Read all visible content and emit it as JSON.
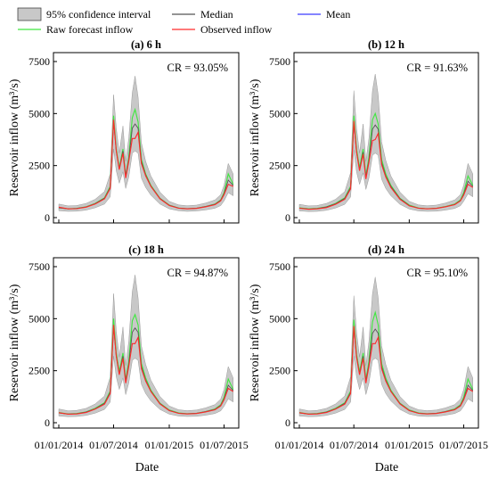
{
  "legend": {
    "items": [
      {
        "label": "95% confidence interval",
        "kind": "band",
        "color": "#c8c8c8"
      },
      {
        "label": "Median",
        "kind": "line",
        "color": "#555555"
      },
      {
        "label": "Mean",
        "kind": "line",
        "color": "#3b3bff"
      },
      {
        "label": "Raw forecast inflow",
        "kind": "line",
        "color": "#3ee83e"
      },
      {
        "label": "Observed inflow",
        "kind": "line",
        "color": "#ff2a2a"
      }
    ]
  },
  "shared_ylabel": "Reservoir inflow (m³/s)",
  "shared_xlabel": "Date",
  "chart_data": [
    {
      "type": "area",
      "title": "(a) 6 h",
      "annotation": "CR = 93.05%",
      "xlabel": "",
      "ylabel": "Reservoir inflow (m³/s)",
      "x_ticks": [],
      "ylim": [
        0,
        7500
      ],
      "y_ticks": [
        "0",
        "2500",
        "5000",
        "7500"
      ],
      "x": [
        "2014-01-01",
        "2014-02-01",
        "2014-03-01",
        "2014-04-01",
        "2014-05-01",
        "2014-06-01",
        "2014-06-20",
        "2014-07-01",
        "2014-07-10",
        "2014-07-20",
        "2014-08-01",
        "2014-08-10",
        "2014-08-20",
        "2014-09-01",
        "2014-09-10",
        "2014-09-20",
        "2014-10-01",
        "2014-10-15",
        "2014-11-01",
        "2014-12-01",
        "2015-01-01",
        "2015-02-01",
        "2015-03-01",
        "2015-04-01",
        "2015-05-01",
        "2015-06-01",
        "2015-06-20",
        "2015-07-01",
        "2015-07-15",
        "2015-07-31"
      ],
      "series": [
        {
          "name": "Observed inflow",
          "values": [
            500,
            420,
            430,
            500,
            650,
            900,
            1400,
            4700,
            3200,
            2300,
            3100,
            1900,
            2700,
            3800,
            3800,
            4100,
            2600,
            2000,
            1500,
            900,
            580,
            450,
            420,
            440,
            520,
            620,
            800,
            1100,
            1600,
            1500
          ]
        },
        {
          "name": "Raw forecast inflow",
          "values": [
            480,
            420,
            440,
            520,
            680,
            950,
            1500,
            4900,
            3300,
            2400,
            3300,
            2000,
            2900,
            4800,
            5200,
            4600,
            2800,
            2100,
            1550,
            930,
            600,
            460,
            430,
            450,
            530,
            650,
            850,
            1200,
            2100,
            1600
          ]
        },
        {
          "name": "Median",
          "values": [
            470,
            420,
            440,
            510,
            670,
            930,
            1450,
            4600,
            3200,
            2350,
            3200,
            2000,
            2800,
            4300,
            4500,
            4300,
            2700,
            2050,
            1520,
            920,
            590,
            460,
            430,
            450,
            530,
            640,
            830,
            1150,
            1800,
            1550
          ]
        },
        {
          "name": "95% confidence interval upper",
          "values": [
            650,
            560,
            580,
            680,
            880,
            1250,
            2100,
            5900,
            4300,
            3100,
            4400,
            2700,
            3800,
            6000,
            6800,
            5800,
            3600,
            2700,
            2000,
            1230,
            780,
            610,
            570,
            600,
            700,
            850,
            1100,
            1550,
            2600,
            2100
          ]
        },
        {
          "name": "95% confidence interval lower",
          "values": [
            330,
            300,
            310,
            360,
            470,
            650,
            1000,
            3300,
            2250,
            1650,
            2200,
            1400,
            1950,
            3100,
            3200,
            3100,
            1900,
            1450,
            1080,
            650,
            420,
            330,
            300,
            320,
            370,
            450,
            580,
            800,
            1200,
            1050
          ]
        }
      ]
    },
    {
      "type": "area",
      "title": "(b) 12 h",
      "annotation": "CR = 91.63%",
      "xlabel": "",
      "ylabel": "Reservoir inflow (m³/s)",
      "x_ticks": [],
      "ylim": [
        0,
        7500
      ],
      "y_ticks": [
        "0",
        "2500",
        "5000",
        "7500"
      ],
      "x": [
        "2014-01-01",
        "2014-02-01",
        "2014-03-01",
        "2014-04-01",
        "2014-05-01",
        "2014-06-01",
        "2014-06-20",
        "2014-07-01",
        "2014-07-10",
        "2014-07-20",
        "2014-08-01",
        "2014-08-10",
        "2014-08-20",
        "2014-09-01",
        "2014-09-10",
        "2014-09-20",
        "2014-10-01",
        "2014-10-15",
        "2014-11-01",
        "2014-12-01",
        "2015-01-01",
        "2015-02-01",
        "2015-03-01",
        "2015-04-01",
        "2015-05-01",
        "2015-06-01",
        "2015-06-20",
        "2015-07-01",
        "2015-07-15",
        "2015-07-31"
      ],
      "series": [
        {
          "name": "Observed inflow",
          "values": [
            450,
            400,
            420,
            480,
            640,
            880,
            1380,
            4650,
            3150,
            2250,
            3050,
            1850,
            2650,
            3700,
            3750,
            4050,
            2550,
            1950,
            1450,
            880,
            560,
            450,
            420,
            440,
            520,
            620,
            800,
            1080,
            1600,
            1450
          ]
        },
        {
          "name": "Raw forecast inflow",
          "values": [
            470,
            420,
            440,
            520,
            680,
            950,
            1500,
            4900,
            3300,
            2400,
            3300,
            2000,
            2900,
            4700,
            5000,
            4500,
            2800,
            2100,
            1550,
            930,
            600,
            460,
            430,
            450,
            530,
            650,
            850,
            1200,
            2000,
            1550
          ]
        },
        {
          "name": "Median",
          "values": [
            460,
            410,
            430,
            510,
            660,
            920,
            1440,
            4550,
            3150,
            2300,
            3150,
            1950,
            2750,
            4250,
            4450,
            4250,
            2650,
            2000,
            1500,
            910,
            580,
            450,
            425,
            445,
            525,
            630,
            820,
            1130,
            1750,
            1500
          ]
        },
        {
          "name": "95% confidence interval upper",
          "values": [
            640,
            560,
            580,
            680,
            880,
            1250,
            2150,
            6100,
            4300,
            3100,
            4500,
            2700,
            3800,
            6100,
            6900,
            5900,
            3650,
            2750,
            2000,
            1230,
            780,
            610,
            570,
            600,
            700,
            850,
            1100,
            1550,
            2600,
            2100
          ]
        },
        {
          "name": "95% confidence interval lower",
          "values": [
            320,
            290,
            300,
            350,
            460,
            640,
            990,
            3250,
            2200,
            1600,
            2150,
            1350,
            1900,
            3000,
            3100,
            3000,
            1850,
            1400,
            1050,
            640,
            410,
            320,
            300,
            310,
            360,
            440,
            570,
            790,
            1150,
            1000
          ]
        }
      ]
    },
    {
      "type": "area",
      "title": "(c) 18 h",
      "annotation": "CR = 94.87%",
      "xlabel": "",
      "ylabel": "Reservoir inflow (m³/s)",
      "x_ticks": [
        "01/01/2014",
        "01/07/2014",
        "01/01/2015",
        "01/07/2015"
      ],
      "ylim": [
        0,
        7500
      ],
      "y_ticks": [
        "0",
        "2500",
        "5000",
        "7500"
      ],
      "x": [
        "2014-01-01",
        "2014-02-01",
        "2014-03-01",
        "2014-04-01",
        "2014-05-01",
        "2014-06-01",
        "2014-06-20",
        "2014-07-01",
        "2014-07-10",
        "2014-07-20",
        "2014-08-01",
        "2014-08-10",
        "2014-08-20",
        "2014-09-01",
        "2014-09-10",
        "2014-09-20",
        "2014-10-01",
        "2014-10-15",
        "2014-11-01",
        "2014-12-01",
        "2015-01-01",
        "2015-02-01",
        "2015-03-01",
        "2015-04-01",
        "2015-05-01",
        "2015-06-01",
        "2015-06-20",
        "2015-07-01",
        "2015-07-15",
        "2015-07-31"
      ],
      "series": [
        {
          "name": "Observed inflow",
          "values": [
            480,
            410,
            420,
            490,
            650,
            890,
            1400,
            4700,
            3200,
            2300,
            3100,
            1900,
            2700,
            3800,
            3800,
            4100,
            2600,
            2000,
            1500,
            900,
            580,
            450,
            420,
            440,
            520,
            620,
            800,
            1100,
            1650,
            1500
          ]
        },
        {
          "name": "Raw forecast inflow",
          "values": [
            490,
            420,
            440,
            520,
            690,
            960,
            1520,
            5000,
            3350,
            2450,
            3350,
            2050,
            2950,
            4900,
            5200,
            4700,
            2850,
            2150,
            1570,
            940,
            610,
            470,
            435,
            455,
            535,
            660,
            860,
            1220,
            2100,
            1600
          ]
        },
        {
          "name": "Median",
          "values": [
            470,
            415,
            435,
            510,
            670,
            930,
            1460,
            4600,
            3200,
            2350,
            3200,
            2000,
            2800,
            4350,
            4550,
            4350,
            2700,
            2050,
            1520,
            920,
            590,
            455,
            430,
            450,
            530,
            640,
            830,
            1150,
            1800,
            1550
          ]
        },
        {
          "name": "95% confidence interval upper",
          "values": [
            660,
            570,
            590,
            690,
            900,
            1280,
            2200,
            6200,
            4400,
            3150,
            4600,
            2750,
            3900,
            6300,
            7100,
            6000,
            3700,
            2800,
            2050,
            1260,
            800,
            620,
            580,
            610,
            710,
            870,
            1130,
            1600,
            2700,
            2150
          ]
        },
        {
          "name": "95% confidence interval lower",
          "values": [
            320,
            290,
            300,
            350,
            460,
            640,
            990,
            3200,
            2200,
            1600,
            2150,
            1350,
            1900,
            3000,
            3100,
            3000,
            1850,
            1400,
            1050,
            640,
            410,
            320,
            300,
            310,
            360,
            440,
            570,
            790,
            1150,
            1000
          ]
        }
      ]
    },
    {
      "type": "area",
      "title": "(d) 24 h",
      "annotation": "CR = 95.10%",
      "xlabel": "",
      "ylabel": "Reservoir inflow (m³/s)",
      "x_ticks": [
        "01/01/2014",
        "01/07/2014",
        "01/01/2015",
        "01/07/2015"
      ],
      "ylim": [
        0,
        7500
      ],
      "y_ticks": [
        "0",
        "2500",
        "5000",
        "7500"
      ],
      "x": [
        "2014-01-01",
        "2014-02-01",
        "2014-03-01",
        "2014-04-01",
        "2014-05-01",
        "2014-06-01",
        "2014-06-20",
        "2014-07-01",
        "2014-07-10",
        "2014-07-20",
        "2014-08-01",
        "2014-08-10",
        "2014-08-20",
        "2014-09-01",
        "2014-09-10",
        "2014-09-20",
        "2014-10-01",
        "2014-10-15",
        "2014-11-01",
        "2014-12-01",
        "2015-01-01",
        "2015-02-01",
        "2015-03-01",
        "2015-04-01",
        "2015-05-01",
        "2015-06-01",
        "2015-06-20",
        "2015-07-01",
        "2015-07-15",
        "2015-07-31"
      ],
      "series": [
        {
          "name": "Observed inflow",
          "values": [
            480,
            410,
            420,
            490,
            650,
            890,
            1400,
            4650,
            3150,
            2300,
            3100,
            1900,
            2700,
            3800,
            3800,
            4100,
            2600,
            2000,
            1500,
            900,
            580,
            450,
            420,
            440,
            520,
            620,
            800,
            1100,
            1650,
            1500
          ]
        },
        {
          "name": "Raw forecast inflow",
          "values": [
            490,
            420,
            440,
            520,
            690,
            960,
            1520,
            4950,
            3300,
            2450,
            3350,
            2050,
            2950,
            4850,
            5300,
            4700,
            2850,
            2150,
            1570,
            940,
            610,
            470,
            435,
            455,
            535,
            660,
            860,
            1220,
            2100,
            1600
          ]
        },
        {
          "name": "Median",
          "values": [
            470,
            415,
            435,
            510,
            670,
            930,
            1460,
            4580,
            3180,
            2350,
            3200,
            2000,
            2800,
            4300,
            4500,
            4300,
            2700,
            2050,
            1520,
            920,
            590,
            455,
            430,
            450,
            530,
            640,
            830,
            1150,
            1800,
            1550
          ]
        },
        {
          "name": "95% confidence interval upper",
          "values": [
            660,
            570,
            590,
            690,
            900,
            1280,
            2200,
            6100,
            4350,
            3150,
            4600,
            2750,
            3900,
            6200,
            7000,
            6000,
            3700,
            2800,
            2050,
            1260,
            800,
            620,
            580,
            610,
            710,
            870,
            1130,
            1600,
            2700,
            2150
          ]
        },
        {
          "name": "95% confidence interval lower",
          "values": [
            320,
            290,
            300,
            350,
            460,
            640,
            990,
            3200,
            2200,
            1600,
            2150,
            1350,
            1900,
            3000,
            3100,
            3000,
            1850,
            1400,
            1050,
            640,
            410,
            320,
            300,
            310,
            360,
            440,
            570,
            790,
            1150,
            1000
          ]
        }
      ]
    }
  ]
}
